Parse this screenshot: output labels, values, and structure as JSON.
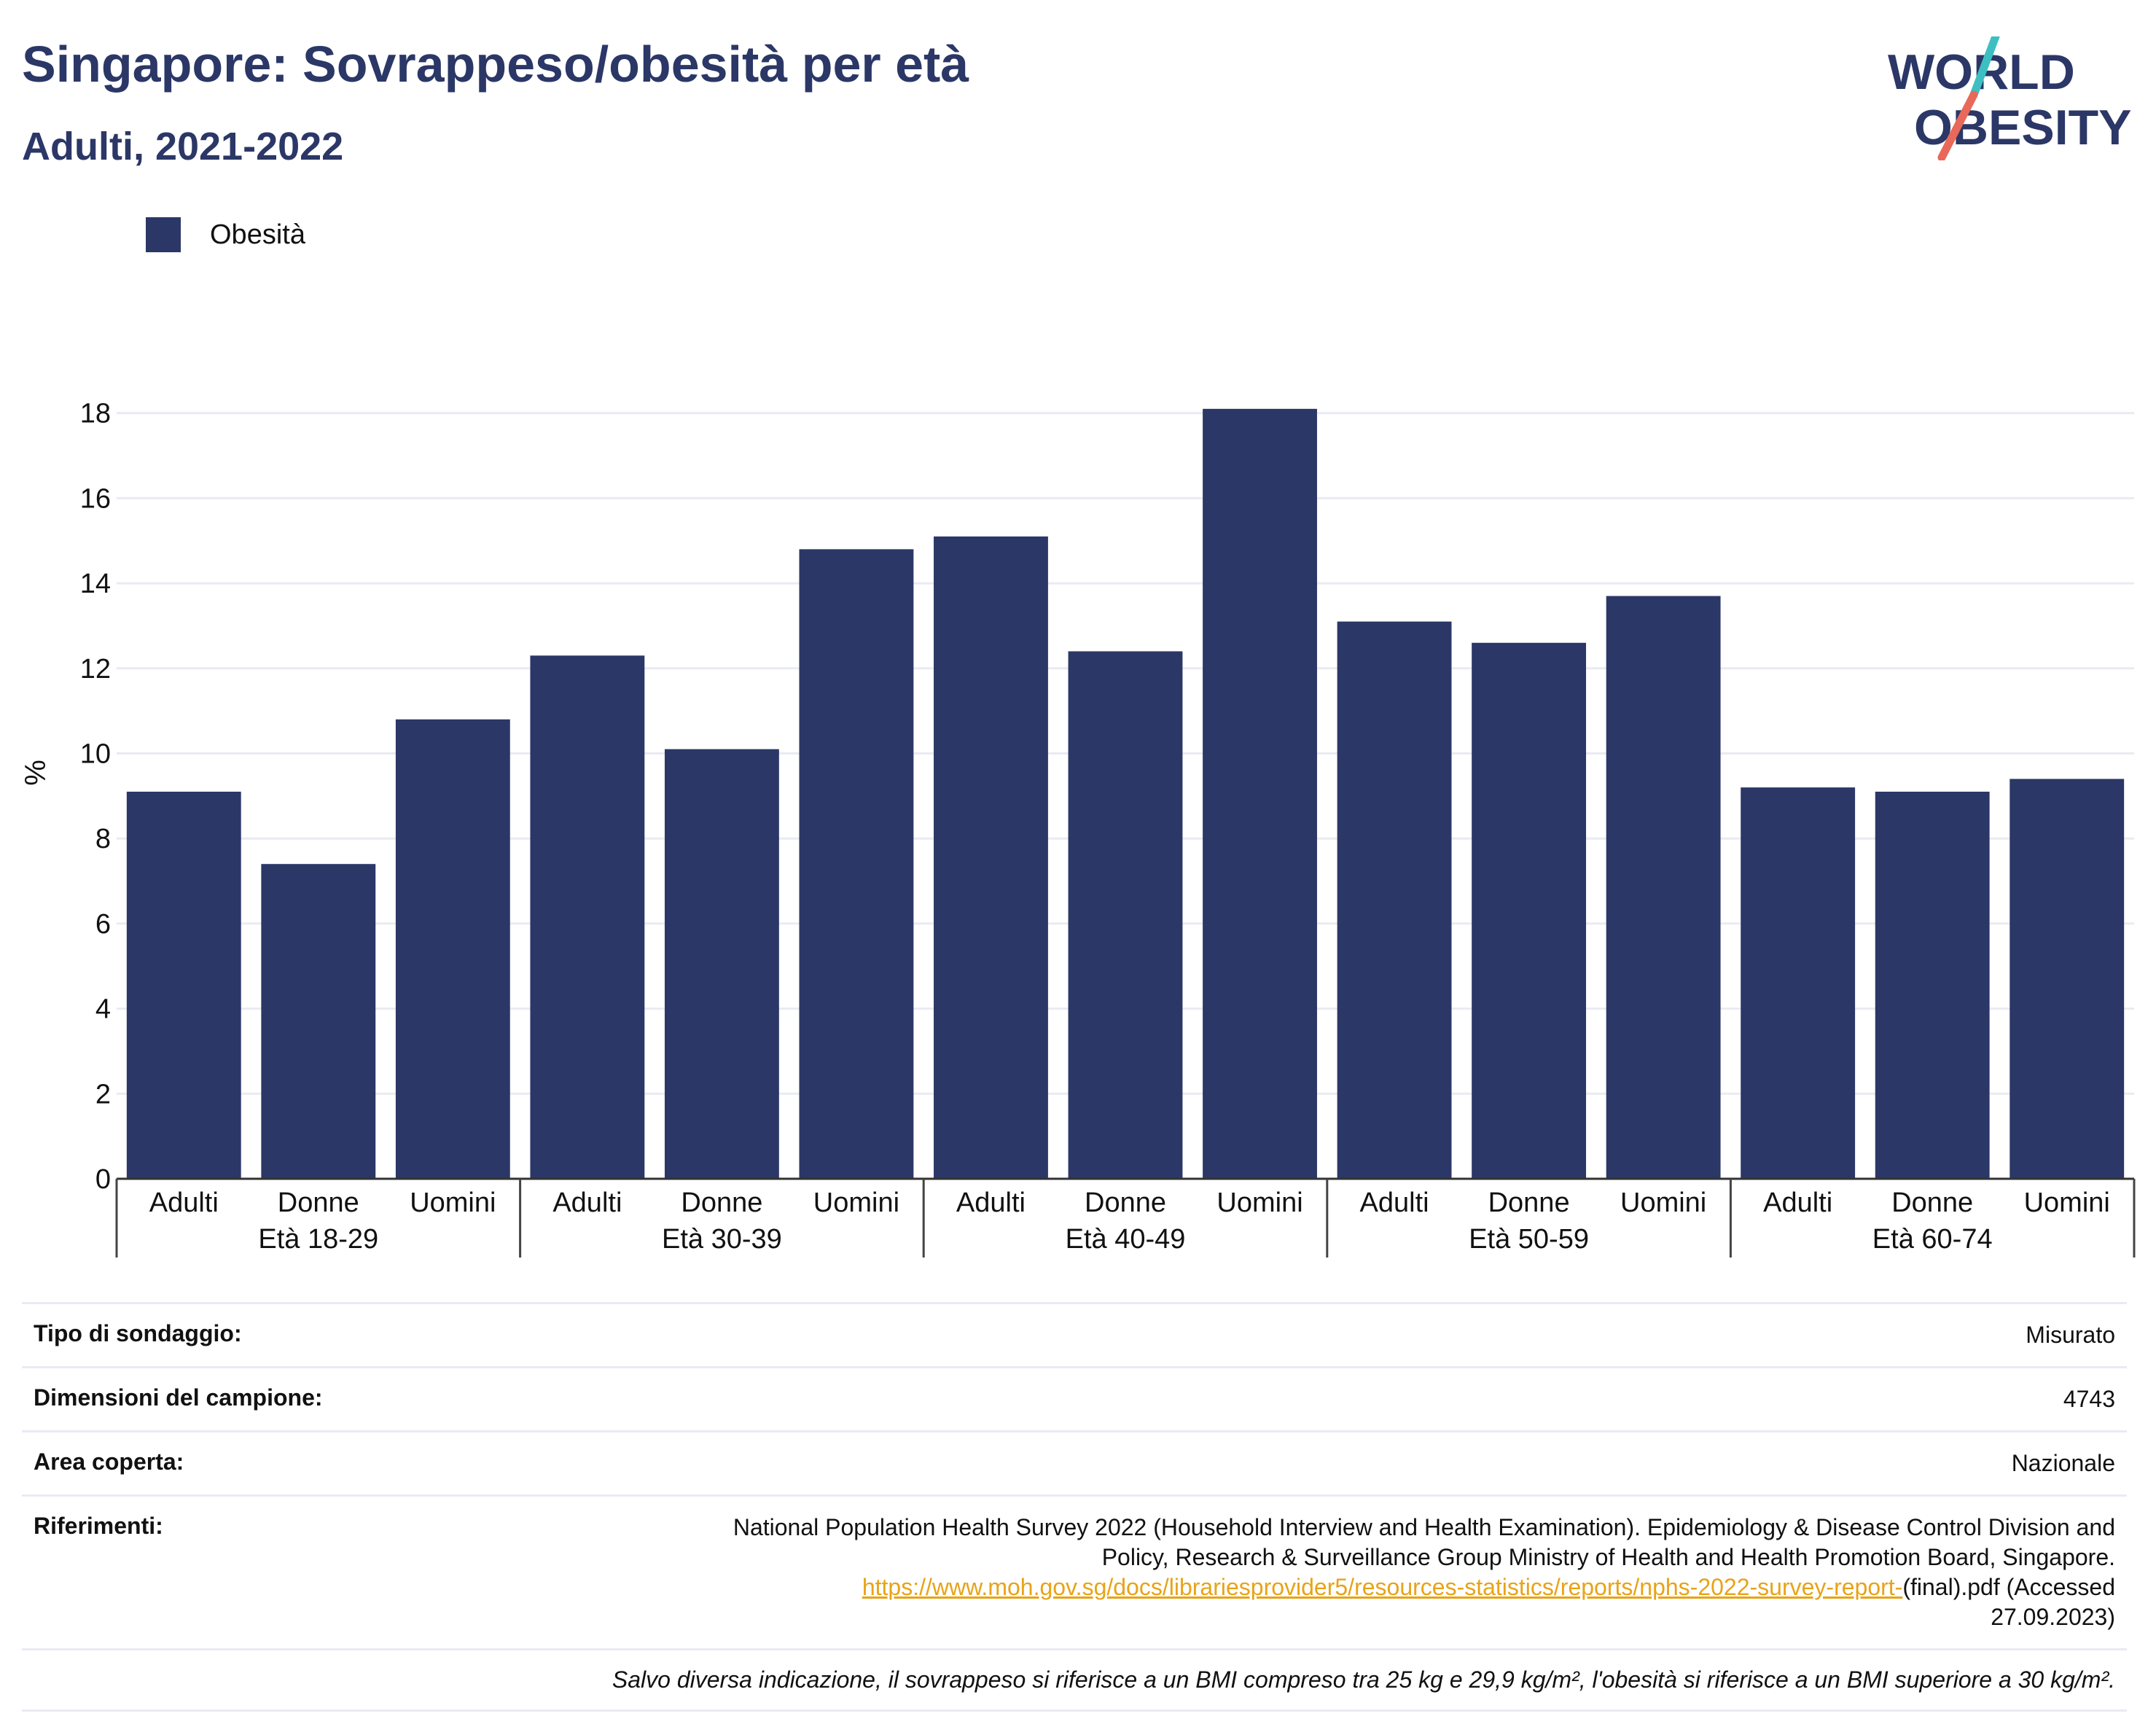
{
  "title": "Singapore: Sovrappeso/obesità per età",
  "subtitle": "Adulti, 2021-2022",
  "logo": {
    "line1": "WORLD",
    "line2": "OBESITY",
    "slash_colors": [
      "#3dbfc2",
      "#e8685a"
    ]
  },
  "colors": {
    "bar": "#2b3766",
    "title": "#2b3766",
    "grid": "#e9ebf2",
    "link": "#e8a317"
  },
  "chart_data": {
    "type": "bar",
    "ylabel": "%",
    "ylim": [
      0,
      18.8
    ],
    "yticks": [
      0,
      2,
      4,
      6,
      8,
      10,
      12,
      14,
      16,
      18
    ],
    "grid": true,
    "legend": {
      "position": "top-left",
      "entries": [
        "Obesità"
      ]
    },
    "groups": [
      "Età 18-29",
      "Età 30-39",
      "Età 40-49",
      "Età 50-59",
      "Età 60-74"
    ],
    "categories": [
      "Adulti",
      "Donne",
      "Uomini"
    ],
    "series": [
      {
        "name": "Obesità",
        "values": [
          [
            9.1,
            7.4,
            10.8
          ],
          [
            12.3,
            10.1,
            14.8
          ],
          [
            15.1,
            12.4,
            18.1
          ],
          [
            13.1,
            12.6,
            13.7
          ],
          [
            9.2,
            9.1,
            9.4
          ]
        ]
      }
    ]
  },
  "info_table": [
    {
      "label": "Tipo di sondaggio:",
      "value": "Misurato"
    },
    {
      "label": "Dimensioni del campione:",
      "value": "4743"
    },
    {
      "label": "Area coperta:",
      "value": "Nazionale"
    }
  ],
  "references": {
    "label": "Riferimenti:",
    "line1": "National Population Health Survey 2022 (Household Interview and Health Examination). Epidemiology & Disease Control Division and",
    "line2": "Policy, Research & Surveillance Group Ministry of Health and Health Promotion Board, Singapore.",
    "link": "https://www.moh.gov.sg/docs/librariesprovider5/resources-statistics/reports/nphs-2022-survey-report-",
    "after_link": "(final).pdf (Accessed",
    "line4": "27.09.2023)"
  },
  "footnote": "Salvo diversa indicazione, il sovrappeso si riferisce a un BMI compreso tra 25 kg e 29,9 kg/m², l'obesità si riferisce a un BMI superiore a 30 kg/m²."
}
